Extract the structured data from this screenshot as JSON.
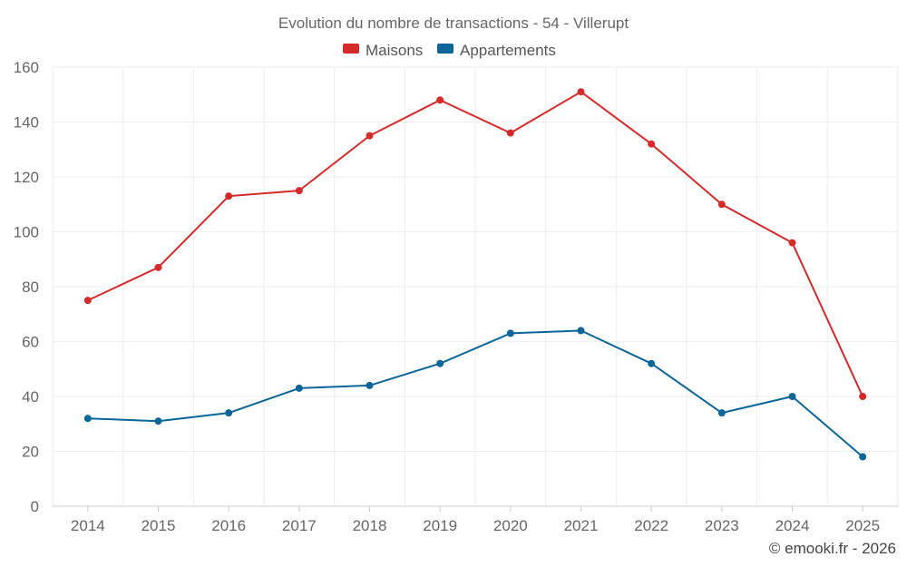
{
  "chart_data": {
    "type": "line",
    "title": "Evolution du nombre de transactions - 54 - Villerupt",
    "categories": [
      "2014",
      "2015",
      "2016",
      "2017",
      "2018",
      "2019",
      "2020",
      "2021",
      "2022",
      "2023",
      "2024",
      "2025"
    ],
    "series": [
      {
        "name": "Maisons",
        "color": "#d42a2a",
        "values": [
          75,
          87,
          113,
          115,
          135,
          148,
          136,
          151,
          132,
          110,
          96,
          40
        ]
      },
      {
        "name": "Appartements",
        "color": "#0a6599",
        "values": [
          32,
          31,
          34,
          43,
          44,
          52,
          63,
          64,
          52,
          34,
          40,
          18
        ]
      }
    ],
    "ylim": [
      0,
      160
    ],
    "yticks": [
      0,
      20,
      40,
      60,
      80,
      100,
      120,
      140,
      160
    ],
    "grid": true,
    "legend_position": "top-center",
    "xlabel": "",
    "ylabel": ""
  },
  "credit": "© emooki.fr - 2026"
}
